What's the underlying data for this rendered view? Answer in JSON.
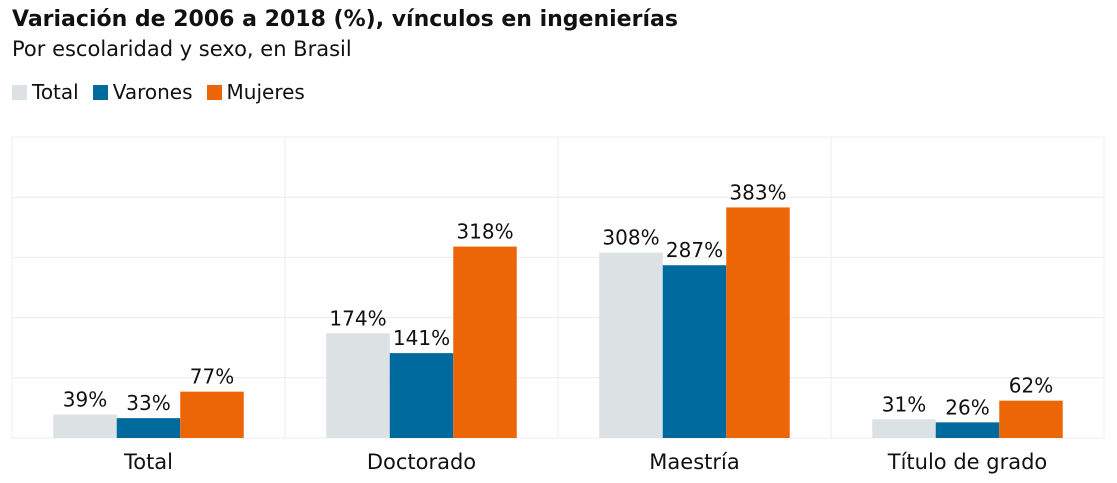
{
  "chart_data": {
    "type": "bar",
    "title": "Variación de 2006 a 2018 (%), vínculos en ingenierías",
    "subtitle": "Por escolaridad y sexo, en Brasil",
    "xlabel": "",
    "ylabel": "",
    "categories": [
      "Total",
      "Doctorado",
      "Maestría",
      "Título de grado"
    ],
    "series": [
      {
        "name": "Total",
        "color": "#dce1e4",
        "values": [
          39,
          174,
          308,
          31
        ],
        "labels": [
          "39%",
          "174%",
          "308%",
          "31%"
        ]
      },
      {
        "name": "Varones",
        "color": "#00699e",
        "values": [
          33,
          141,
          287,
          26
        ],
        "labels": [
          "33%",
          "141%",
          "287%",
          "26%"
        ]
      },
      {
        "name": "Mujeres",
        "color": "#ec6608",
        "values": [
          77,
          318,
          383,
          62
        ],
        "labels": [
          "77%",
          "318%",
          "383%",
          "62%"
        ]
      }
    ],
    "ylim": [
      0,
      500
    ],
    "grid": true,
    "legend": "top-left"
  }
}
